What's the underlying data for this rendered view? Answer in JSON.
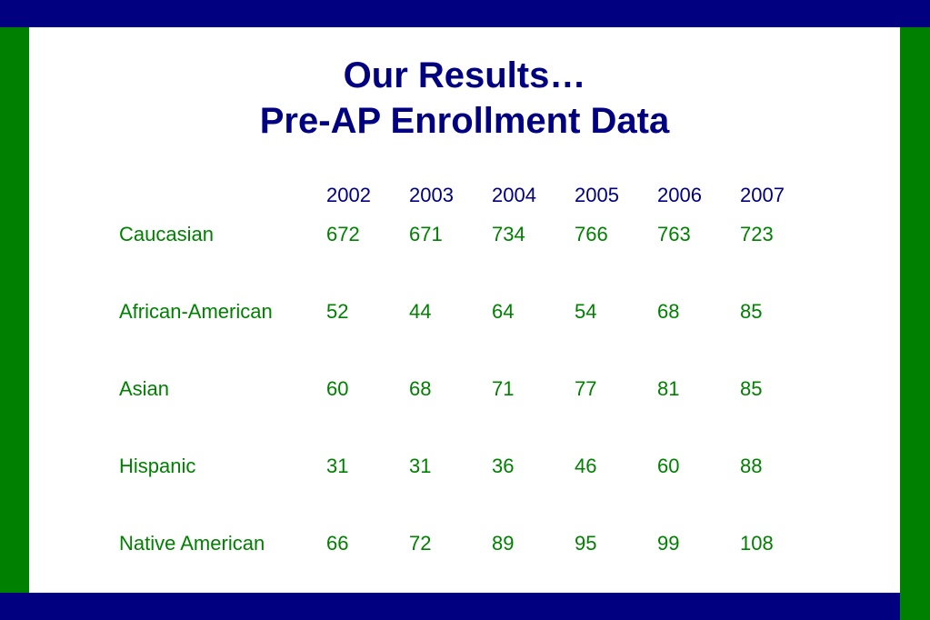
{
  "colors": {
    "navy": "#000080",
    "green": "#008000",
    "background": "#ffffff"
  },
  "title": {
    "line1": "Our Results…",
    "line2": "Pre-AP Enrollment Data"
  },
  "table": {
    "years": [
      "2002",
      "2003",
      "2004",
      "2005",
      "2006",
      "2007"
    ],
    "rows": [
      {
        "label": "Caucasian",
        "values": [
          "672",
          "671",
          "734",
          "766",
          "763",
          "723"
        ]
      },
      {
        "label": "African-American",
        "values": [
          "52",
          "44",
          "64",
          "54",
          "68",
          "85"
        ]
      },
      {
        "label": "Asian",
        "values": [
          "60",
          "68",
          "71",
          "77",
          "81",
          "85"
        ]
      },
      {
        "label": "Hispanic",
        "values": [
          "31",
          "31",
          "36",
          "46",
          "60",
          "88"
        ]
      },
      {
        "label": "Native American",
        "values": [
          "66",
          "72",
          "89",
          "95",
          "99",
          "108"
        ]
      }
    ]
  }
}
